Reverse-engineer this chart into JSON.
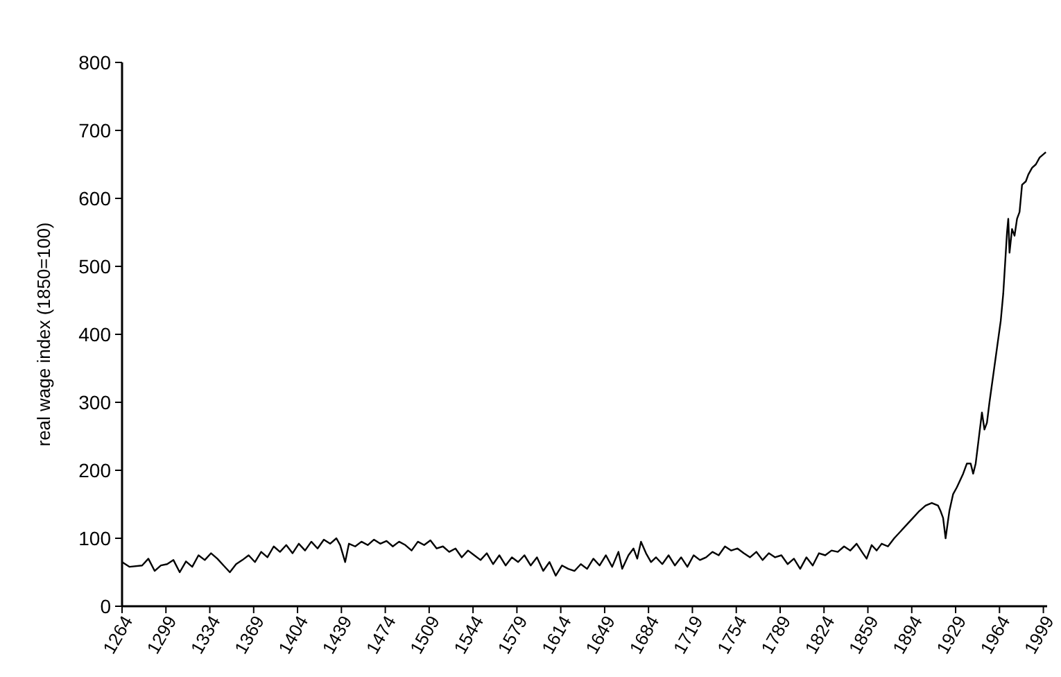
{
  "chart_data": {
    "type": "line",
    "ylabel": "real wage index (1850=100)",
    "xlim": [
      1264,
      2002
    ],
    "ylim": [
      0,
      800
    ],
    "xticks": [
      1264,
      1299,
      1334,
      1369,
      1404,
      1439,
      1474,
      1509,
      1544,
      1579,
      1614,
      1649,
      1684,
      1719,
      1754,
      1789,
      1824,
      1859,
      1894,
      1929,
      1964,
      1999
    ],
    "yticks": [
      0,
      100,
      200,
      300,
      400,
      500,
      600,
      700,
      800
    ],
    "grid": false,
    "marker": "none",
    "line_style": "solid",
    "series": [
      {
        "color": "#000000",
        "x": [
          1264,
          1270,
          1280,
          1285,
          1290,
          1295,
          1300,
          1305,
          1310,
          1315,
          1320,
          1325,
          1330,
          1335,
          1340,
          1345,
          1350,
          1355,
          1360,
          1365,
          1370,
          1375,
          1380,
          1385,
          1390,
          1395,
          1400,
          1405,
          1410,
          1415,
          1420,
          1425,
          1430,
          1435,
          1438,
          1442,
          1445,
          1450,
          1455,
          1460,
          1465,
          1470,
          1475,
          1480,
          1485,
          1490,
          1495,
          1500,
          1505,
          1510,
          1515,
          1520,
          1525,
          1530,
          1535,
          1540,
          1545,
          1550,
          1555,
          1560,
          1565,
          1570,
          1575,
          1580,
          1585,
          1590,
          1595,
          1600,
          1605,
          1610,
          1615,
          1620,
          1625,
          1630,
          1635,
          1640,
          1645,
          1650,
          1655,
          1660,
          1663,
          1668,
          1672,
          1675,
          1678,
          1682,
          1686,
          1690,
          1695,
          1700,
          1705,
          1710,
          1715,
          1720,
          1725,
          1730,
          1735,
          1740,
          1745,
          1750,
          1755,
          1760,
          1765,
          1770,
          1775,
          1780,
          1785,
          1790,
          1795,
          1800,
          1805,
          1810,
          1815,
          1820,
          1825,
          1830,
          1835,
          1840,
          1845,
          1850,
          1855,
          1858,
          1862,
          1866,
          1870,
          1875,
          1880,
          1885,
          1890,
          1895,
          1900,
          1905,
          1910,
          1915,
          1917,
          1919,
          1921,
          1924,
          1927,
          1930,
          1935,
          1938,
          1941,
          1943,
          1945,
          1947,
          1950,
          1952,
          1954,
          1956,
          1959,
          1962,
          1965,
          1967,
          1969,
          1970,
          1971,
          1972,
          1974,
          1976,
          1978,
          1980,
          1982,
          1985,
          1987,
          1990,
          1993,
          1996,
          2001
        ],
        "values": [
          65,
          58,
          60,
          70,
          52,
          60,
          62,
          68,
          50,
          66,
          58,
          75,
          68,
          78,
          70,
          60,
          50,
          62,
          68,
          75,
          65,
          80,
          72,
          88,
          80,
          90,
          78,
          92,
          82,
          95,
          85,
          98,
          92,
          100,
          90,
          65,
          92,
          88,
          95,
          90,
          98,
          92,
          96,
          88,
          95,
          90,
          82,
          95,
          90,
          97,
          85,
          88,
          80,
          85,
          72,
          82,
          75,
          68,
          78,
          62,
          75,
          60,
          72,
          65,
          75,
          60,
          72,
          52,
          65,
          45,
          60,
          55,
          52,
          62,
          55,
          70,
          60,
          75,
          58,
          80,
          55,
          75,
          85,
          70,
          95,
          78,
          65,
          72,
          62,
          75,
          60,
          72,
          58,
          75,
          68,
          72,
          80,
          75,
          88,
          82,
          85,
          78,
          72,
          80,
          68,
          78,
          72,
          75,
          62,
          70,
          55,
          72,
          60,
          78,
          75,
          82,
          80,
          88,
          82,
          92,
          78,
          70,
          90,
          82,
          92,
          88,
          100,
          110,
          120,
          130,
          140,
          148,
          152,
          148,
          140,
          130,
          100,
          140,
          165,
          175,
          195,
          210,
          210,
          195,
          210,
          240,
          285,
          260,
          270,
          300,
          340,
          380,
          420,
          460,
          520,
          550,
          570,
          520,
          555,
          545,
          570,
          580,
          620,
          625,
          635,
          645,
          650,
          660,
          668
        ]
      }
    ]
  }
}
